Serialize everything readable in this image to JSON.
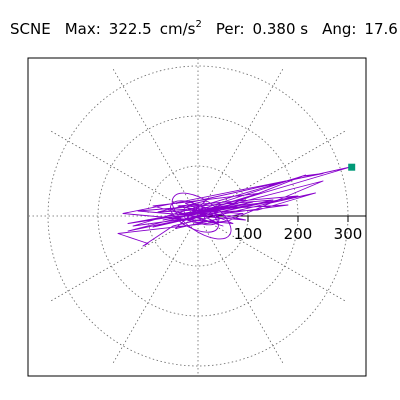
{
  "header": {
    "station": "SCNE",
    "max_label": "Max:",
    "max_value": "322.5",
    "max_unit": "cm/s",
    "max_unit_sup": "2",
    "per_label": "Per:",
    "per_value": "0.380 s",
    "ang_label": "Ang:",
    "ang_value": "17.6"
  },
  "chart_data": {
    "type": "scatter",
    "title": "",
    "coordinate_system": "polar",
    "radial_ticks": [
      100,
      200,
      300
    ],
    "radial_tick_labels": [
      "100",
      "200",
      "300"
    ],
    "r_max": 340,
    "grid_rings": [
      100,
      200,
      300
    ],
    "grid_spokes_deg": [
      0,
      30,
      60,
      90,
      120,
      150,
      180,
      210,
      240,
      270,
      300,
      330
    ],
    "grid": true,
    "trace_color": "#8800cc",
    "marker_color": "#009977",
    "peak": {
      "r": 322.5,
      "angle_deg": 17.6
    },
    "trace_xy_cm_s2": [
      [
        0,
        0
      ],
      [
        20,
        8
      ],
      [
        -15,
        -4
      ],
      [
        40,
        12
      ],
      [
        -30,
        -10
      ],
      [
        60,
        20
      ],
      [
        -55,
        -5
      ],
      [
        35,
        -12
      ],
      [
        -20,
        15
      ],
      [
        80,
        18
      ],
      [
        -70,
        -8
      ],
      [
        110,
        28
      ],
      [
        -90,
        -22
      ],
      [
        150,
        32
      ],
      [
        -120,
        10
      ],
      [
        95,
        -8
      ],
      [
        -40,
        20
      ],
      [
        200,
        40
      ],
      [
        -140,
        -30
      ],
      [
        250,
        70
      ],
      [
        60,
        -10
      ],
      [
        -160,
        -35
      ],
      [
        -100,
        -55
      ],
      [
        -110,
        -60
      ],
      [
        -50,
        -20
      ],
      [
        140,
        25
      ],
      [
        235,
        46
      ],
      [
        120,
        12
      ],
      [
        -30,
        5
      ],
      [
        50,
        -20
      ],
      [
        -60,
        15
      ],
      [
        90,
        5
      ],
      [
        -45,
        -25
      ],
      [
        15,
        30
      ],
      [
        -80,
        8
      ],
      [
        180,
        22
      ],
      [
        -130,
        -20
      ],
      [
        210,
        80
      ],
      [
        250,
        85
      ],
      [
        -150,
        5
      ],
      [
        70,
        -15
      ],
      [
        -25,
        25
      ],
      [
        305,
        98
      ],
      [
        -60,
        -10
      ],
      [
        120,
        45
      ],
      [
        -90,
        20
      ],
      [
        40,
        -15
      ],
      [
        -10,
        10
      ],
      [
        160,
        30
      ],
      [
        -140,
        -15
      ],
      [
        80,
        25
      ],
      [
        -50,
        -5
      ],
      [
        215,
        82
      ],
      [
        -20,
        -10
      ],
      [
        30,
        15
      ],
      [
        -15,
        5
      ],
      [
        10,
        -8
      ],
      [
        0,
        0
      ]
    ]
  }
}
